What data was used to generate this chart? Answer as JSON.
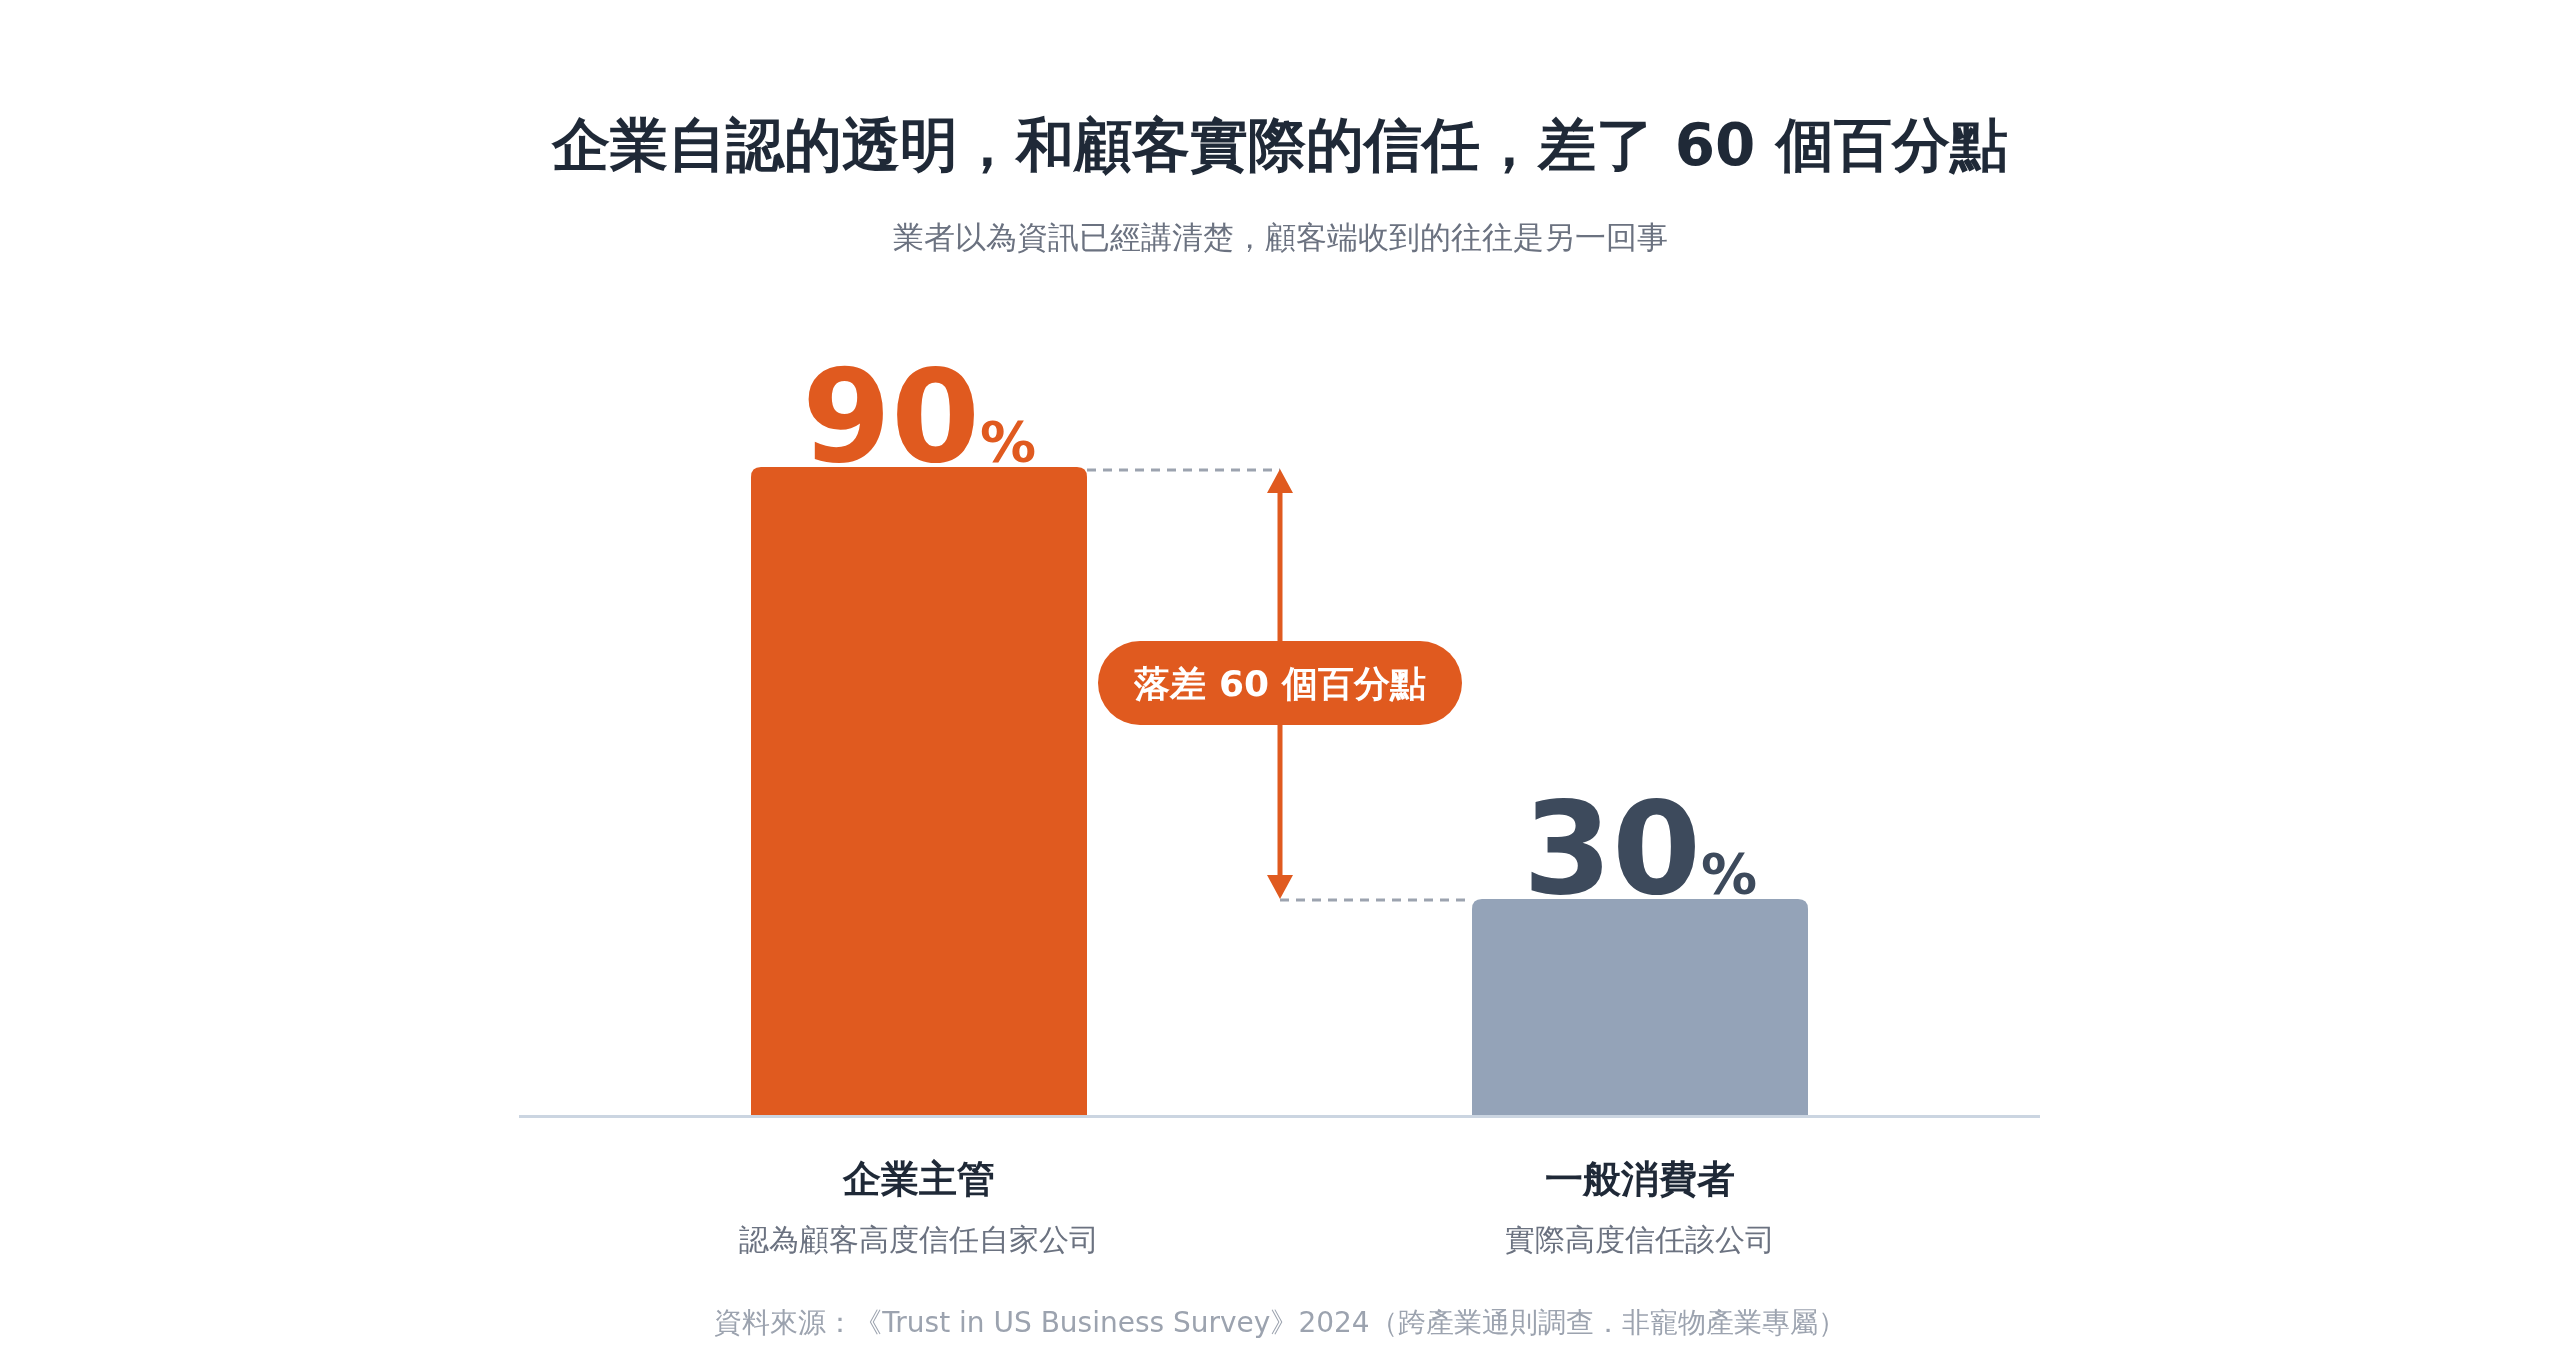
{
  "chart_data": {
    "type": "bar",
    "title": "企業自認的透明，和顧客實際的信任，差了 60 個百分點",
    "subtitle": "業者以為資訊已經講清楚，顧客端收到的往往是另一回事",
    "categories": [
      "企業主管",
      "一般消費者"
    ],
    "values": [
      90,
      30
    ],
    "colors": [
      "#e05a1f",
      "#94a3b8"
    ],
    "value_labels": [
      "90%",
      "30%"
    ],
    "annotations": [
      "認為顧客高度信任自家公司",
      "實際高度信任該公司",
      "落差 60 個百分點",
      "資料來源：《Trust in US Business Survey》2024（跨產業通則調查．非寵物產業專屬）"
    ]
  }
}
